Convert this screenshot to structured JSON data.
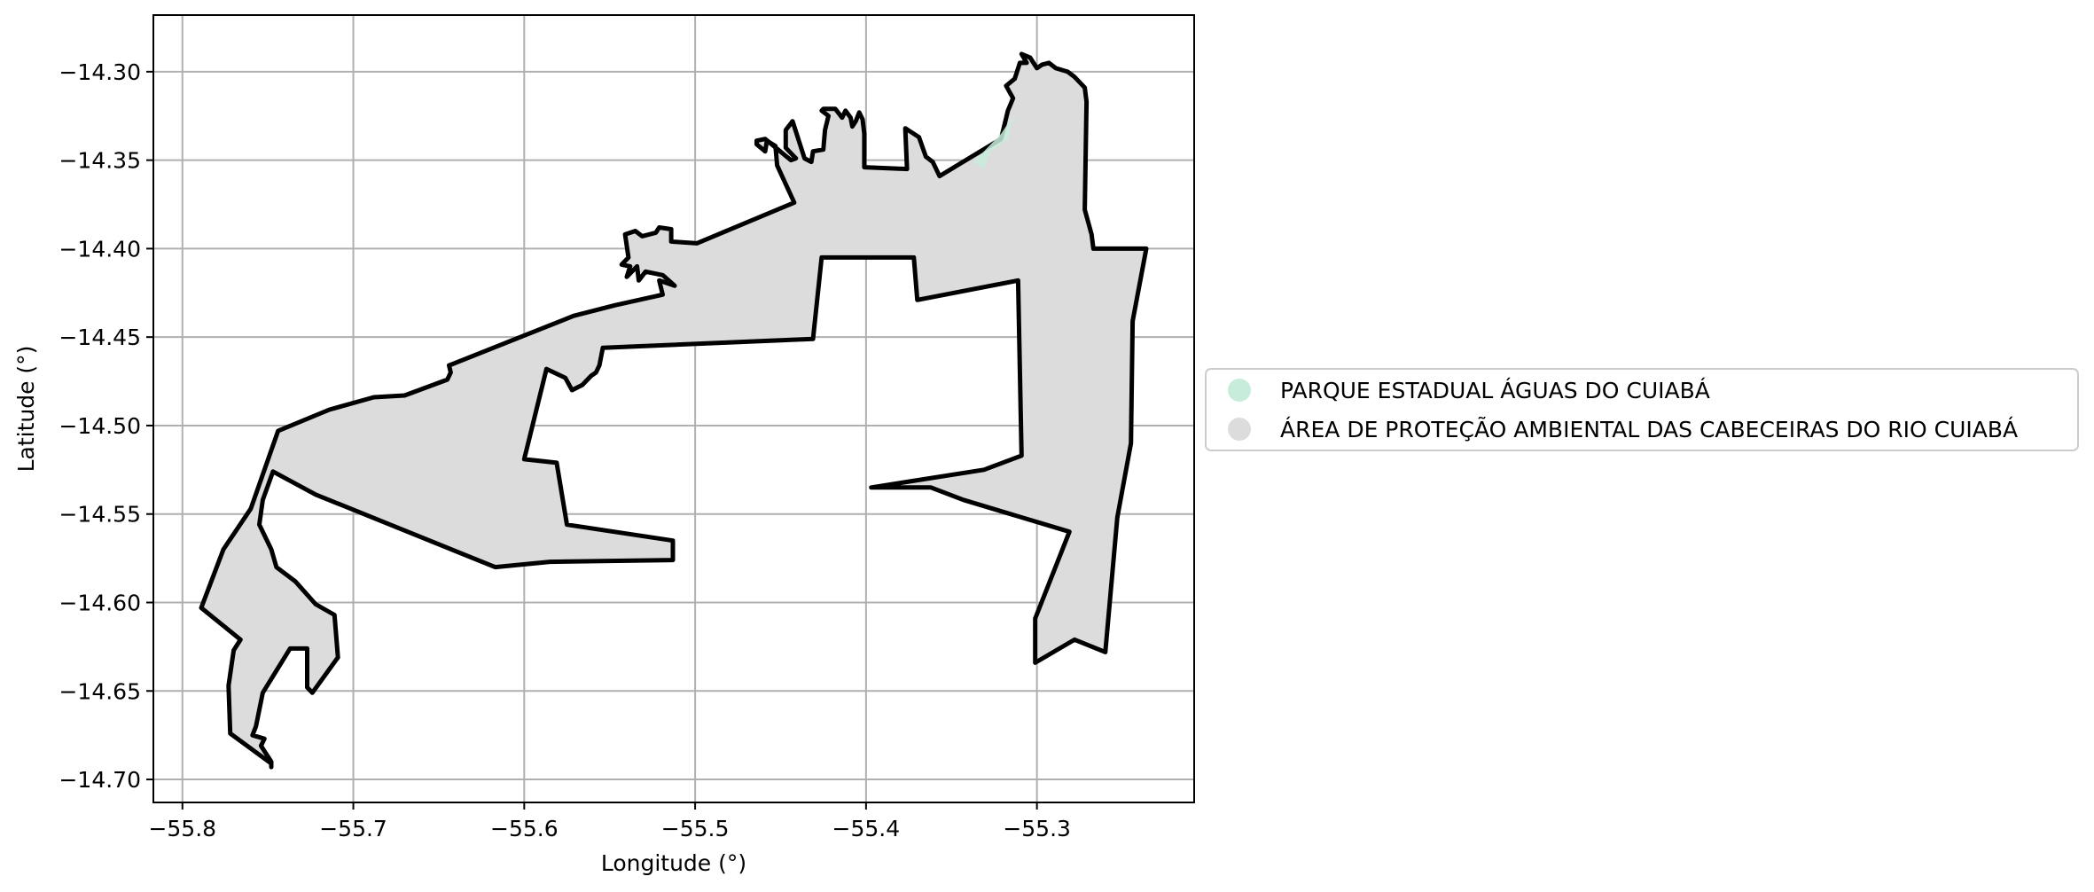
{
  "chart_data": {
    "type": "map",
    "xlabel": "Longitude (°)",
    "ylabel": "Latitude (°)",
    "xlim": [
      -55.817,
      -55.208
    ],
    "ylim": [
      -14.713,
      -14.268
    ],
    "grid": true,
    "legend_position": "right",
    "x_ticks": [
      -55.8,
      -55.7,
      -55.6,
      -55.5,
      -55.4,
      -55.3
    ],
    "x_tick_labels": [
      "−55.8",
      "−55.7",
      "−55.6",
      "−55.5",
      "−55.4",
      "−55.3"
    ],
    "y_ticks": [
      -14.3,
      -14.35,
      -14.4,
      -14.45,
      -14.5,
      -14.55,
      -14.6,
      -14.65,
      -14.7
    ],
    "y_tick_labels": [
      "−14.30",
      "−14.35",
      "−14.40",
      "−14.45",
      "−14.50",
      "−14.55",
      "−14.60",
      "−14.65",
      "−14.70"
    ],
    "series": [
      {
        "name": "PARQUE ESTADUAL ÁGUAS DO CUIABÁ",
        "color": "#c8ecdc",
        "outline": true,
        "polygon": [
          [
            -55.327,
            -14.345
          ],
          [
            -55.331,
            -14.355
          ],
          [
            -55.337,
            -14.351
          ],
          [
            -55.321,
            -14.335
          ],
          [
            -55.314,
            -14.325
          ],
          [
            -55.317,
            -14.338
          ]
        ]
      },
      {
        "name": "ÁREA DE PROTEÇÃO AMBIENTAL DAS CABECEIRAS DO RIO CUIABÁ",
        "color": "#dcdcdc",
        "outline": true,
        "polygon": [
          [
            -55.748,
            -14.693
          ],
          [
            -55.748,
            -14.691
          ],
          [
            -55.772,
            -14.674
          ],
          [
            -55.773,
            -14.647
          ],
          [
            -55.77,
            -14.627
          ],
          [
            -55.766,
            -14.621
          ],
          [
            -55.789,
            -14.603
          ],
          [
            -55.776,
            -14.57
          ],
          [
            -55.76,
            -14.547
          ],
          [
            -55.744,
            -14.503
          ],
          [
            -55.714,
            -14.491
          ],
          [
            -55.688,
            -14.484
          ],
          [
            -55.67,
            -14.483
          ],
          [
            -55.645,
            -14.474
          ],
          [
            -55.643,
            -14.47
          ],
          [
            -55.644,
            -14.466
          ],
          [
            -55.571,
            -14.438
          ],
          [
            -55.547,
            -14.432
          ],
          [
            -55.519,
            -14.426
          ],
          [
            -55.521,
            -14.418
          ],
          [
            -55.512,
            -14.421
          ],
          [
            -55.519,
            -14.415
          ],
          [
            -55.529,
            -14.413
          ],
          [
            -55.533,
            -14.418
          ],
          [
            -55.534,
            -14.41
          ],
          [
            -55.54,
            -14.416
          ],
          [
            -55.538,
            -14.41
          ],
          [
            -55.543,
            -14.409
          ],
          [
            -55.539,
            -14.405
          ],
          [
            -55.541,
            -14.392
          ],
          [
            -55.535,
            -14.39
          ],
          [
            -55.531,
            -14.393
          ],
          [
            -55.523,
            -14.391
          ],
          [
            -55.521,
            -14.388
          ],
          [
            -55.514,
            -14.389
          ],
          [
            -55.514,
            -14.396
          ],
          [
            -55.499,
            -14.397
          ],
          [
            -55.442,
            -14.374
          ],
          [
            -55.452,
            -14.353
          ],
          [
            -55.453,
            -14.342
          ],
          [
            -55.458,
            -14.339
          ],
          [
            -55.459,
            -14.345
          ],
          [
            -55.464,
            -14.341
          ],
          [
            -55.464,
            -14.339
          ],
          [
            -55.459,
            -14.338
          ],
          [
            -55.444,
            -14.35
          ],
          [
            -55.441,
            -14.349
          ],
          [
            -55.447,
            -14.343
          ],
          [
            -55.447,
            -14.333
          ],
          [
            -55.443,
            -14.328
          ],
          [
            -55.436,
            -14.349
          ],
          [
            -55.432,
            -14.351
          ],
          [
            -55.431,
            -14.345
          ],
          [
            -55.425,
            -14.344
          ],
          [
            -55.424,
            -14.333
          ],
          [
            -55.422,
            -14.325
          ],
          [
            -55.426,
            -14.322
          ],
          [
            -55.425,
            -14.321
          ],
          [
            -55.418,
            -14.321
          ],
          [
            -55.414,
            -14.326
          ],
          [
            -55.412,
            -14.322
          ],
          [
            -55.409,
            -14.326
          ],
          [
            -55.408,
            -14.331
          ],
          [
            -55.406,
            -14.328
          ],
          [
            -55.404,
            -14.323
          ],
          [
            -55.402,
            -14.327
          ],
          [
            -55.401,
            -14.335
          ],
          [
            -55.401,
            -14.354
          ],
          [
            -55.376,
            -14.355
          ],
          [
            -55.377,
            -14.333
          ],
          [
            -55.377,
            -14.332
          ],
          [
            -55.369,
            -14.337
          ],
          [
            -55.365,
            -14.348
          ],
          [
            -55.361,
            -14.351
          ],
          [
            -55.357,
            -14.359
          ],
          [
            -55.345,
            -14.352
          ],
          [
            -55.333,
            -14.345
          ],
          [
            -55.321,
            -14.338
          ],
          [
            -55.317,
            -14.322
          ],
          [
            -55.314,
            -14.315
          ],
          [
            -55.318,
            -14.308
          ],
          [
            -55.313,
            -14.304
          ],
          [
            -55.31,
            -14.295
          ],
          [
            -55.306,
            -14.295
          ],
          [
            -55.309,
            -14.29
          ],
          [
            -55.304,
            -14.292
          ],
          [
            -55.3,
            -14.298
          ],
          [
            -55.297,
            -14.296
          ],
          [
            -55.293,
            -14.295
          ],
          [
            -55.289,
            -14.298
          ],
          [
            -55.282,
            -14.3
          ],
          [
            -55.278,
            -14.303
          ],
          [
            -55.272,
            -14.309
          ],
          [
            -55.271,
            -14.317
          ],
          [
            -55.272,
            -14.378
          ],
          [
            -55.268,
            -14.392
          ],
          [
            -55.267,
            -14.4
          ],
          [
            -55.236,
            -14.4
          ],
          [
            -55.244,
            -14.441
          ],
          [
            -55.245,
            -14.51
          ],
          [
            -55.253,
            -14.552
          ],
          [
            -55.26,
            -14.628
          ],
          [
            -55.278,
            -14.621
          ],
          [
            -55.301,
            -14.634
          ],
          [
            -55.301,
            -14.609
          ],
          [
            -55.281,
            -14.56
          ],
          [
            -55.343,
            -14.542
          ],
          [
            -55.362,
            -14.535
          ],
          [
            -55.397,
            -14.535
          ],
          [
            -55.331,
            -14.525
          ],
          [
            -55.309,
            -14.517
          ],
          [
            -55.311,
            -14.418
          ],
          [
            -55.37,
            -14.429
          ],
          [
            -55.372,
            -14.405
          ],
          [
            -55.426,
            -14.405
          ],
          [
            -55.431,
            -14.451
          ],
          [
            -55.554,
            -14.456
          ],
          [
            -55.556,
            -14.466
          ],
          [
            -55.558,
            -14.47
          ],
          [
            -55.561,
            -14.472
          ],
          [
            -55.566,
            -14.477
          ],
          [
            -55.572,
            -14.48
          ],
          [
            -55.576,
            -14.473
          ],
          [
            -55.587,
            -14.468
          ],
          [
            -55.6,
            -14.519
          ],
          [
            -55.581,
            -14.521
          ],
          [
            -55.575,
            -14.556
          ],
          [
            -55.513,
            -14.565
          ],
          [
            -55.513,
            -14.576
          ],
          [
            -55.585,
            -14.577
          ],
          [
            -55.617,
            -14.58
          ],
          [
            -55.722,
            -14.539
          ],
          [
            -55.747,
            -14.526
          ],
          [
            -55.753,
            -14.542
          ],
          [
            -55.755,
            -14.556
          ],
          [
            -55.748,
            -14.57
          ],
          [
            -55.745,
            -14.58
          ],
          [
            -55.734,
            -14.588
          ],
          [
            -55.722,
            -14.601
          ],
          [
            -55.711,
            -14.607
          ],
          [
            -55.709,
            -14.631
          ],
          [
            -55.724,
            -14.651
          ],
          [
            -55.727,
            -14.648
          ],
          [
            -55.727,
            -14.626
          ],
          [
            -55.737,
            -14.626
          ],
          [
            -55.753,
            -14.651
          ],
          [
            -55.757,
            -14.67
          ],
          [
            -55.759,
            -14.675
          ],
          [
            -55.752,
            -14.677
          ],
          [
            -55.754,
            -14.681
          ],
          [
            -55.748,
            -14.69
          ]
        ]
      }
    ]
  }
}
